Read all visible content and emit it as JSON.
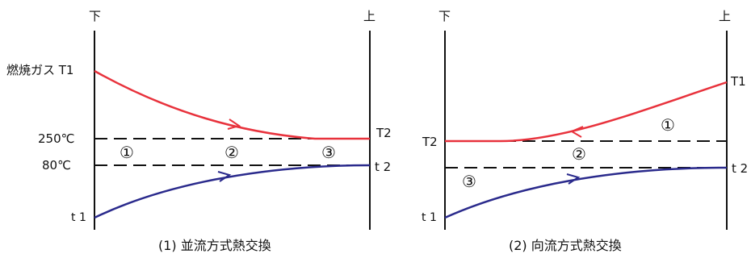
{
  "left": {
    "top_left": "下",
    "top_right": "上",
    "gas_in_label": "燃焼ガス T1",
    "level_high_label": "250℃",
    "level_low_label": "80℃",
    "gas_out_label": "T2",
    "water_in_label": "t 1",
    "water_out_label": "t 2",
    "zones": [
      "①",
      "②",
      "③"
    ],
    "caption": "(1) 並流方式熱交換"
  },
  "right": {
    "top_left": "下",
    "top_right": "上",
    "gas_in_label": "T1",
    "gas_out_label": "T2",
    "water_in_label": "t 1",
    "water_out_label": "t 2",
    "zones": [
      "①",
      "②",
      "③"
    ],
    "caption": "(2) 向流方式熱交換"
  },
  "colors": {
    "gas_curve": "#e8323c",
    "water_curve": "#2a2a8c",
    "frame": "#111111"
  }
}
